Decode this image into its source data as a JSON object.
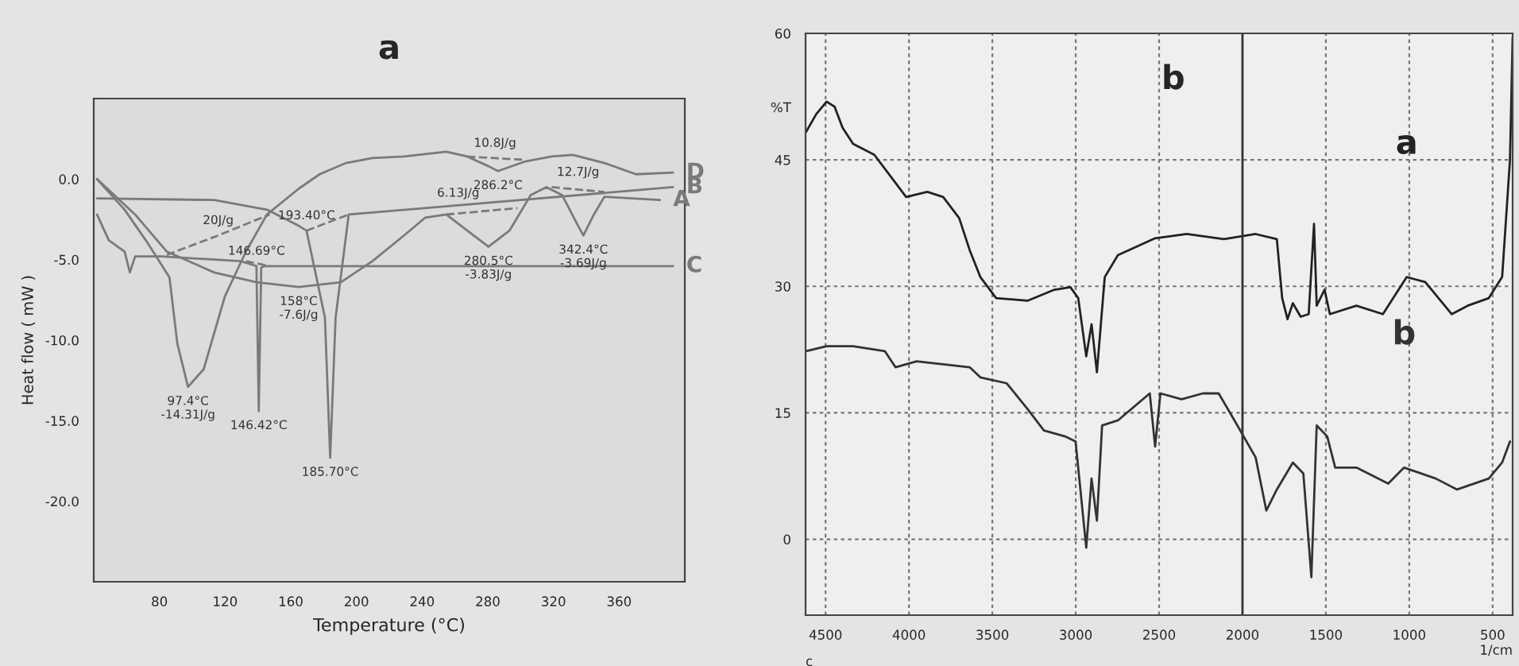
{
  "chart_data": [
    {
      "type": "line",
      "title": "a",
      "xlabel": "Temperature (°C)",
      "ylabel": "Heat flow ( mW )",
      "xlim": [
        40,
        400
      ],
      "ylim": [
        -25,
        5
      ],
      "xticks": [
        80,
        120,
        160,
        200,
        240,
        280,
        320,
        360
      ],
      "yticks": [
        {
          "value": 0,
          "label": "0.0"
        },
        {
          "value": -5,
          "label": "-5.0"
        },
        {
          "value": -10,
          "label": "-10.0"
        },
        {
          "value": -15,
          "label": "-15.0"
        },
        {
          "value": -20,
          "label": "-20.0"
        }
      ],
      "grid": false,
      "legend": false,
      "line_style": "solid",
      "series": [
        {
          "name": "A",
          "color": "#7a7a7a",
          "x": [
            42,
            65.2,
            84.5,
            113.4,
            139.1,
            164.8,
            190.5,
            209.7,
            229,
            241.8,
            254.7,
            267.5,
            280.4,
            293.2,
            306.1,
            315.7,
            325.3,
            335,
            338.2,
            344.6,
            351,
            384.8
          ],
          "values": [
            0,
            -2.2,
            -4.5,
            -5.8,
            -6.4,
            -6.7,
            -6.4,
            -5.1,
            -3.5,
            -2.4,
            -2.2,
            -3.2,
            -4.2,
            -3.2,
            -1.0,
            -0.5,
            -1.0,
            -2.9,
            -3.5,
            -2.2,
            -1.1,
            -1.3
          ]
        },
        {
          "name": "B",
          "color": "#7a7a7a",
          "x": [
            42,
            113.4,
            145.5,
            164.8,
            169.6,
            180.8,
            184,
            187.3,
            195.3,
            392.8
          ],
          "values": [
            -1.2,
            -1.3,
            -1.9,
            -2.9,
            -3.2,
            -8.6,
            -17.3,
            -8.6,
            -2.2,
            -0.5
          ]
        },
        {
          "name": "C",
          "color": "#7a7a7a",
          "x": [
            42,
            49.2,
            58.8,
            62,
            65.2,
            81.3,
            129.5,
            139.1,
            140.5,
            142,
            143.9,
            392.8
          ],
          "values": [
            -2.2,
            -3.8,
            -4.5,
            -5.8,
            -4.8,
            -4.8,
            -5.1,
            -5.4,
            -14.4,
            -5.5,
            -5.4,
            -5.4
          ]
        },
        {
          "name": "D",
          "color": "#7a7a7a",
          "x": [
            42,
            58.8,
            71.7,
            78,
            86.1,
            90.9,
            97.4,
            107,
            119.8,
            132.7,
            145.5,
            164.8,
            177.6,
            193.7,
            209.7,
            229,
            254.7,
            267.5,
            280.4,
            286.2,
            302.9,
            318.9,
            331.8,
            351,
            370.3,
            392.8
          ],
          "values": [
            0,
            -1.9,
            -3.8,
            -4.8,
            -6.1,
            -10.2,
            -12.9,
            -11.8,
            -7.3,
            -4.5,
            -2.2,
            -0.6,
            0.3,
            1.0,
            1.3,
            1.4,
            1.7,
            1.4,
            0.8,
            0.5,
            1.1,
            1.4,
            1.5,
            1.0,
            0.3,
            0.4
          ]
        },
        {
          "color": "#7a7a7a",
          "line_style": "dashed",
          "x": [
            84.5,
            115.8,
            147.1
          ],
          "values": [
            -4.7,
            -3.5,
            -2.2
          ]
        },
        {
          "color": "#7a7a7a",
          "line_style": "dashed",
          "x": [
            132.7,
            147.1
          ],
          "values": [
            -5.1,
            -5.4
          ]
        },
        {
          "color": "#7a7a7a",
          "line_style": "dashed",
          "x": [
            169.6,
            195.3
          ],
          "values": [
            -3.2,
            -2.2
          ]
        },
        {
          "color": "#7a7a7a",
          "line_style": "dashed",
          "x": [
            254.7,
            298
          ],
          "values": [
            -2.2,
            -1.8
          ]
        },
        {
          "color": "#7a7a7a",
          "line_style": "dashed",
          "x": [
            267.5,
            284.4,
            301.3
          ],
          "values": [
            1.4,
            1.3,
            1.2
          ]
        },
        {
          "color": "#7a7a7a",
          "line_style": "dashed",
          "x": [
            318.9,
            351
          ],
          "values": [
            -0.5,
            -0.8
          ]
        }
      ],
      "annotations": [
        {
          "text": "20J/g",
          "x": 115.8,
          "y": -3.5
        },
        {
          "text": "146.69°C",
          "x": 139.1,
          "y": -5.4
        },
        {
          "text": "158°C\n-7.6J/g",
          "x": 164.8,
          "y": -6.7
        },
        {
          "text": "97.4°C\n-14.31J/g",
          "x": 97.4,
          "y": -12.9
        },
        {
          "text": "146.42°C",
          "x": 140.5,
          "y": -14.4
        },
        {
          "text": "193.40°C",
          "x": 169.6,
          "y": -3.2
        },
        {
          "text": "185.70°C",
          "x": 184,
          "y": -17.3
        },
        {
          "text": "6.13J/g",
          "x": 262,
          "y": -1.8
        },
        {
          "text": "280.5°C\n-3.83J/g",
          "x": 280.4,
          "y": -4.2
        },
        {
          "text": "342.4°C\n-3.69J/g",
          "x": 338.2,
          "y": -3.5
        },
        {
          "text": "12.7J/g",
          "x": 335,
          "y": -0.5
        },
        {
          "text": "10.8J/g",
          "x": 284.4,
          "y": 1.3
        },
        {
          "text": "286.2°C",
          "x": 286.2,
          "y": 0.5
        }
      ]
    },
    {
      "type": "line",
      "title": "b",
      "xlabel": "1/cm",
      "ylabel": "%T",
      "xlim": [
        4620,
        380
      ],
      "ylim": [
        -9,
        60
      ],
      "xticks": [
        4500,
        4000,
        3500,
        3000,
        2500,
        2000,
        1500,
        1000,
        500
      ],
      "yticks": [
        0,
        15,
        30,
        45,
        60
      ],
      "grid": true,
      "legend": false,
      "line_style": "solid",
      "ref_lines": [
        {
          "axis": "x",
          "value": 2000,
          "color": "#333333"
        }
      ],
      "annotations": [
        "c"
      ],
      "series": [
        {
          "name": "a",
          "color": "#222222",
          "x": [
            4620,
            4557,
            4494,
            4446,
            4398,
            4335,
            4208,
            4112,
            4017,
            3890,
            3795,
            3699,
            3636,
            3572,
            3477,
            3287,
            3128,
            3032,
            2985,
            2937,
            2905,
            2873,
            2826,
            2747,
            2524,
            2334,
            2111,
            1921,
            1794,
            1762,
            1730,
            1698,
            1651,
            1603,
            1571,
            1555,
            1508,
            1476,
            1317,
            1158,
            1015,
            904,
            745,
            650,
            523,
            443,
            396,
            380
          ],
          "values": [
            48.2,
            50.4,
            51.9,
            51.3,
            48.8,
            46.9,
            45.6,
            43.1,
            40.6,
            41.2,
            40.6,
            38.1,
            34.3,
            31.1,
            28.6,
            28.3,
            29.6,
            29.9,
            28.6,
            21.7,
            25.5,
            19.8,
            31.1,
            33.7,
            35.7,
            36.2,
            35.6,
            36.2,
            35.6,
            28.6,
            26.1,
            28.0,
            26.4,
            26.7,
            37.4,
            27.7,
            29.6,
            26.7,
            27.7,
            26.7,
            31.1,
            30.5,
            26.7,
            27.7,
            28.6,
            31.1,
            45.0,
            59.5
          ]
        },
        {
          "name": "b",
          "color": "#333333",
          "x": [
            4620,
            4494,
            4335,
            4144,
            4081,
            3954,
            3636,
            3572,
            3414,
            3287,
            3191,
            3064,
            3001,
            2937,
            2905,
            2873,
            2842,
            2747,
            2556,
            2524,
            2492,
            2365,
            2238,
            2143,
            2048,
            1921,
            1857,
            1794,
            1698,
            1635,
            1587,
            1555,
            1492,
            1444,
            1317,
            1126,
            1031,
            841,
            713,
            523,
            443,
            396
          ],
          "values": [
            22.3,
            22.9,
            22.9,
            22.3,
            20.4,
            21.1,
            20.4,
            19.2,
            18.5,
            15.4,
            12.9,
            12.2,
            11.6,
            -1.0,
            7.2,
            2.2,
            13.5,
            14.1,
            17.3,
            11.0,
            17.3,
            16.6,
            17.3,
            17.3,
            14.1,
            9.7,
            3.4,
            5.9,
            9.1,
            7.8,
            -4.5,
            13.5,
            12.2,
            8.5,
            8.5,
            6.6,
            8.5,
            7.2,
            5.9,
            7.2,
            9.1,
            11.6
          ]
        }
      ]
    }
  ]
}
